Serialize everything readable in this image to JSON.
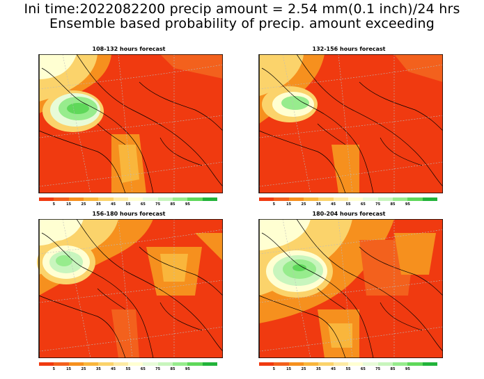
{
  "title_line1": "Ini time:2022082200 precip amount = 2.54 mm(0.1 inch)/24 hrs",
  "title_line2": "Ensemble based probability of precip. amount exceeding",
  "panels": [
    {
      "title": "108-132 hours forecast"
    },
    {
      "title": "132-156 hours forecast"
    },
    {
      "title": "156-180 hours forecast"
    },
    {
      "title": "180-204 hours forecast"
    }
  ],
  "colorbar": {
    "colors": [
      "#f03a10",
      "#f3611d",
      "#f6901e",
      "#f9b63c",
      "#fbd36b",
      "#fdeba3",
      "#ffffd2",
      "#e8fbd8",
      "#c8f5bd",
      "#97ec8d",
      "#5fd85a",
      "#22b33a"
    ],
    "labels": [
      "5",
      "15",
      "25",
      "35",
      "45",
      "55",
      "65",
      "75",
      "85",
      "95"
    ]
  }
}
